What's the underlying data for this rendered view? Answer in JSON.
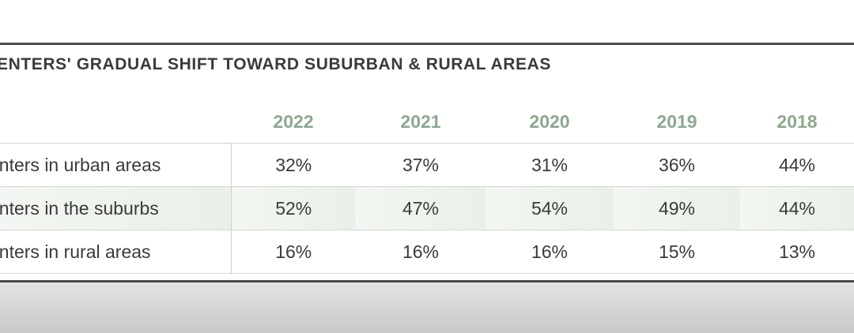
{
  "chart_data": {
    "type": "table",
    "title": "ENTERS' GRADUAL SHIFT TOWARD SUBURBAN & RURAL AREAS",
    "columns": [
      "2022",
      "2021",
      "2020",
      "2019",
      "2018"
    ],
    "rows": [
      {
        "label": "enters in urban areas",
        "values": [
          "32%",
          "37%",
          "31%",
          "36%",
          "44%"
        ]
      },
      {
        "label": "enters in the suburbs",
        "values": [
          "52%",
          "47%",
          "54%",
          "49%",
          "44%"
        ]
      },
      {
        "label": "enters in rural areas",
        "values": [
          "16%",
          "16%",
          "16%",
          "15%",
          "13%"
        ]
      }
    ],
    "colors": {
      "header_text": "#8ea890",
      "body_text": "#3a3a3a",
      "frame": "#4a4a4a",
      "shaded_row": "#eef3ec"
    }
  }
}
